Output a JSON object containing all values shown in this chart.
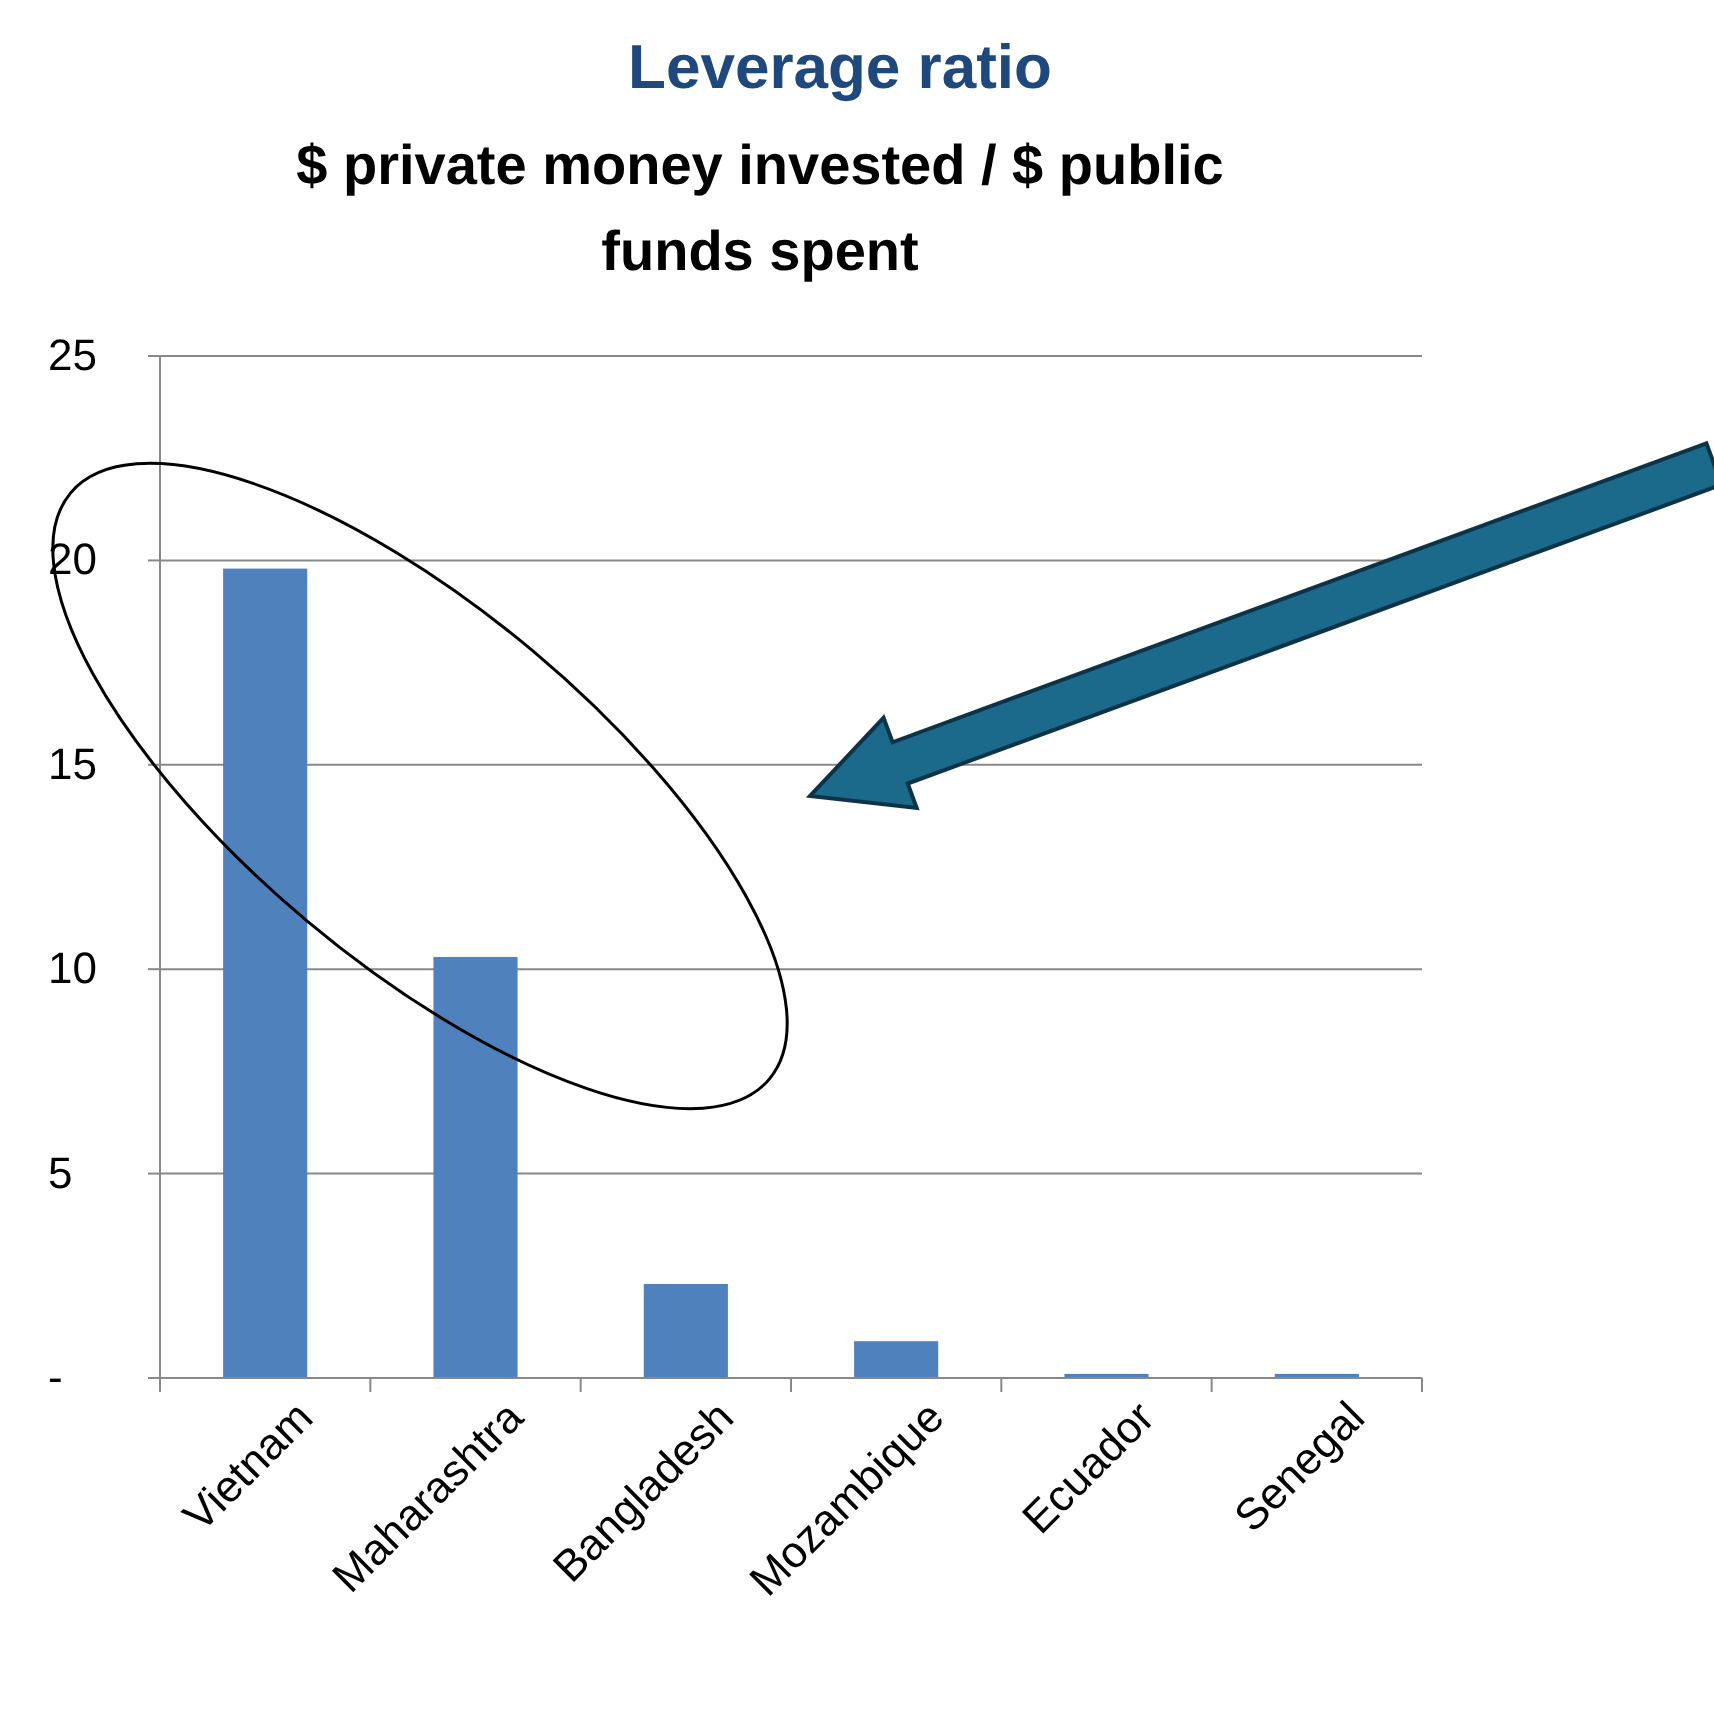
{
  "chart_data": {
    "type": "bar",
    "title": "Leverage ratio",
    "subtitle": "$ private money invested / $ public funds spent",
    "categories": [
      "Vietnam",
      "Maharashtra",
      "Bangladesh",
      "Mozambique",
      "Ecuador",
      "Senegal"
    ],
    "values": [
      19.8,
      10.3,
      2.3,
      0.9,
      0.1,
      0.1
    ],
    "color": "#4f81bd",
    "ylim": [
      0,
      25
    ],
    "yticks": [
      {
        "value": 0,
        "label": "-"
      },
      5,
      10,
      15,
      20,
      25
    ],
    "grid": "y"
  }
}
